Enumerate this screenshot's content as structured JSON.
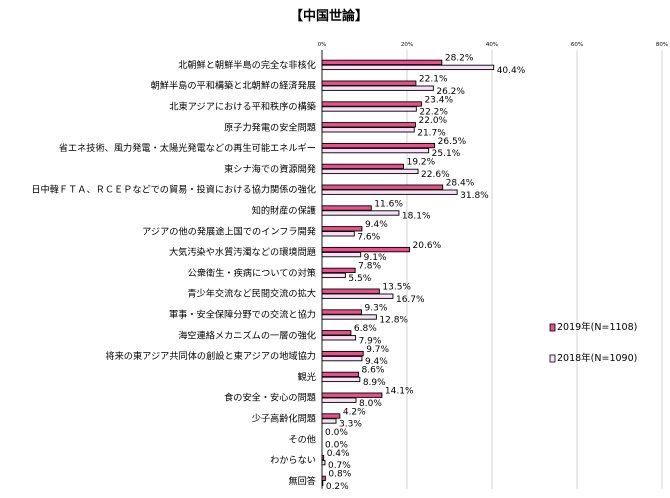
{
  "chart_data": {
    "type": "bar",
    "orientation": "horizontal",
    "title": "【中国世論】",
    "xlim": [
      0,
      80
    ],
    "ticks": [
      "0%",
      "20%",
      "40%",
      "60%",
      "80%"
    ],
    "grid": true,
    "legend_position": "right",
    "categories": [
      "北朝鮮と朝鮮半島の完全な非核化",
      "朝鮮半島の平和構築と北朝鮮の経済発展",
      "北東アジアにおける平和秩序の構築",
      "原子力発電の安全問題",
      "省エネ技術、風力発電・太陽光発電などの再生可能エネルギー",
      "東シナ海での資源開発",
      "日中韓ＦＴＡ、ＲＣＥＰなどでの貿易・投資における協力関係の強化",
      "知的財産の保護",
      "アジアの他の発展途上国でのインフラ開発",
      "大気汚染や水質汚濁などの環境問題",
      "公衆衛生・疾病についての対策",
      "青少年交流など民間交流の拡大",
      "軍事・安全保障分野での交流と協力",
      "海空連絡メカニズムの一層の強化",
      "将来の東アジア共同体の創設と東アジアの地域協力",
      "観光",
      "食の安全・安心の問題",
      "少子高齢化問題",
      "その他",
      "わからない",
      "無回答"
    ],
    "series": [
      {
        "name": "2019年(N=1108)",
        "color": "#e8508a",
        "values": [
          28.2,
          22.1,
          23.4,
          22.0,
          26.5,
          19.2,
          28.4,
          11.6,
          9.4,
          20.6,
          7.8,
          13.5,
          9.3,
          6.8,
          9.7,
          8.6,
          14.1,
          4.2,
          0.0,
          0.4,
          0.8
        ],
        "labels": [
          "28.2%",
          "22.1%",
          "23.4%",
          "22.0%",
          "26.5%",
          "19.2%",
          "28.4%",
          "11.6%",
          "9.4%",
          "20.6%",
          "7.8%",
          "13.5%",
          "9.3%",
          "6.8%",
          "9.7%",
          "8.6%",
          "14.1%",
          "4.2%",
          "0.0%",
          "0.4%",
          "0.8%"
        ]
      },
      {
        "name": "2018年(N=1090)",
        "color": "#f8e0f8",
        "values": [
          40.4,
          26.2,
          22.2,
          21.7,
          25.1,
          22.6,
          31.8,
          18.1,
          7.6,
          9.1,
          5.5,
          16.7,
          12.8,
          7.9,
          9.4,
          8.9,
          8.0,
          3.3,
          0.0,
          0.7,
          0.2
        ],
        "labels": [
          "40.4%",
          "26.2%",
          "22.2%",
          "21.7%",
          "25.1%",
          "22.6%",
          "31.8%",
          "18.1%",
          "7.6%",
          "9.1%",
          "5.5%",
          "16.7%",
          "12.8%",
          "7.9%",
          "9.4%",
          "8.9%",
          "8.0%",
          "3.3%",
          "0.0%",
          "0.7%",
          "0.2%"
        ]
      }
    ]
  }
}
